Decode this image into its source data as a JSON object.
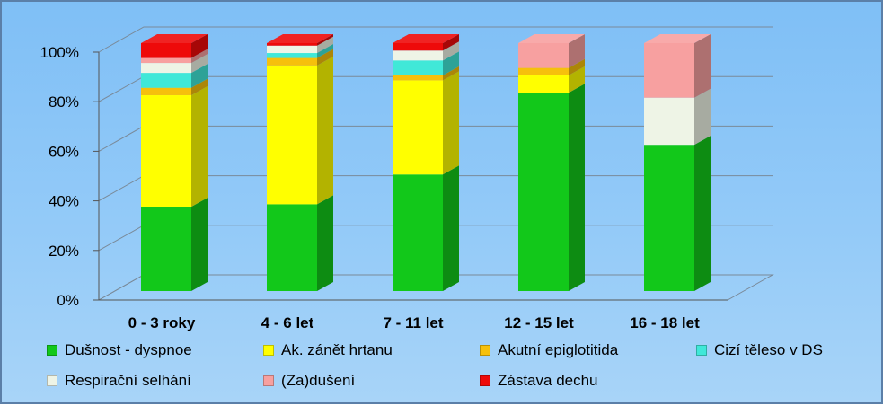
{
  "chart_data": {
    "type": "bar",
    "stacked": true,
    "percent": true,
    "title": "",
    "xlabel": "",
    "ylabel": "",
    "ylim": [
      0,
      100
    ],
    "yticks": [
      "0%",
      "20%",
      "40%",
      "60%",
      "80%",
      "100%"
    ],
    "categories": [
      "0 - 3 roky",
      "4 - 6 let",
      "7 - 11 let",
      "12 - 15 let",
      "16 - 18 let"
    ],
    "series": [
      {
        "name": "Dušnost - dyspnoe",
        "color": "#12c81a",
        "values": [
          34,
          35,
          47,
          80,
          59
        ]
      },
      {
        "name": "Ak. zánět hrtanu",
        "color": "#ffff00",
        "values": [
          45,
          56,
          38,
          7,
          0
        ]
      },
      {
        "name": "Akutní epiglotitida",
        "color": "#f6c00c",
        "values": [
          3,
          3,
          2,
          3,
          0
        ]
      },
      {
        "name": "Cizí těleso v DS",
        "color": "#40e8d8",
        "values": [
          6,
          2,
          6,
          0,
          0
        ]
      },
      {
        "name": "Respirační selhání",
        "color": "#eef4e6",
        "values": [
          4,
          3,
          4,
          0,
          19
        ]
      },
      {
        "name": "(Za)dušení",
        "color": "#f7a0a0",
        "values": [
          2,
          0,
          0,
          10,
          22
        ]
      },
      {
        "name": "Zástava dechu",
        "color": "#ee0a0a",
        "values": [
          6,
          1,
          3,
          0,
          0
        ]
      }
    ],
    "legend_position": "bottom",
    "grid": true
  }
}
